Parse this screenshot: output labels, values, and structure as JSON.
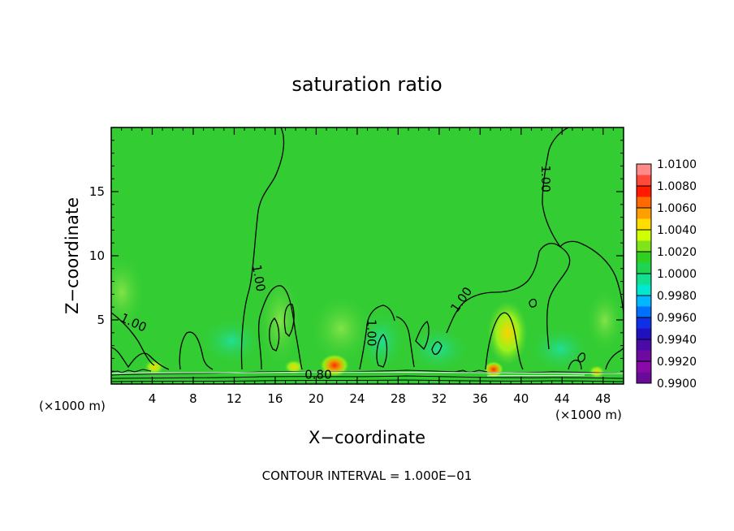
{
  "chart_data": {
    "type": "heatmap",
    "title": "saturation ratio",
    "xlabel": "X−coordinate",
    "ylabel": "Z−coordinate",
    "x_unit_left": "(×1000 m)",
    "x_unit_right": "(×1000 m)",
    "xlim": [
      0,
      50
    ],
    "ylim": [
      0,
      20
    ],
    "xticks": [
      4,
      8,
      12,
      16,
      20,
      24,
      28,
      32,
      36,
      40,
      44,
      48
    ],
    "yticks": [
      5,
      10,
      15
    ],
    "contour_labels": [
      {
        "text": "1.00",
        "x": 2.0,
        "y": 4.5
      },
      {
        "text": "1.00",
        "x": 14.0,
        "y": 8.2
      },
      {
        "text": "1.00",
        "x": 25.0,
        "y": 4.0
      },
      {
        "text": "1.00",
        "x": 34.5,
        "y": 6.4
      },
      {
        "text": "1.00",
        "x": 42.0,
        "y": 16.0
      },
      {
        "text": "0.80",
        "x": 20.2,
        "y": 0.4
      }
    ],
    "colorbar": {
      "levels": [
        "1.0100",
        "1.0080",
        "1.0060",
        "1.0040",
        "1.0020",
        "1.0000",
        "0.9980",
        "0.9960",
        "0.9940",
        "0.9920",
        "0.9900"
      ],
      "colors": [
        "#ff8a8a",
        "#ff4a3a",
        "#ff1a00",
        "#ff6a00",
        "#ffa000",
        "#ffdd00",
        "#cfff00",
        "#7fe41a",
        "#2fd020",
        "#1ed450",
        "#10e090",
        "#00e8d0",
        "#00b8ff",
        "#0070ff",
        "#1030e8",
        "#2010c0",
        "#4a0aa8",
        "#6e0aa0",
        "#8a0aa8",
        "#6a0a98"
      ]
    },
    "background_color": "#33cc33",
    "grid": false
  },
  "footer": {
    "contour_interval": "CONTOUR INTERVAL = 1.000E−01"
  }
}
